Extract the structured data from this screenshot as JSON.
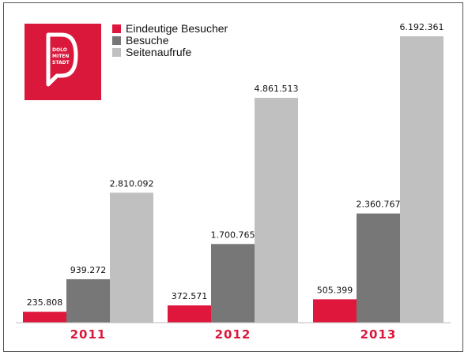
{
  "logo": {
    "lines": [
      "DOLO",
      "MITEN",
      "STADT"
    ],
    "color": "#d9183b"
  },
  "chart_data": {
    "type": "bar",
    "categories": [
      "2011",
      "2012",
      "2013"
    ],
    "series": [
      {
        "name": "Eindeutige Besucher",
        "values": [
          235808,
          372571,
          505399
        ],
        "labels": [
          "235.808",
          "372.571",
          "505.399"
        ],
        "color": "#e0173d"
      },
      {
        "name": "Besuche",
        "values": [
          939272,
          1700765,
          2360767
        ],
        "labels": [
          "939.272",
          "1.700.765",
          "2.360.767"
        ],
        "color": "#777777"
      },
      {
        "name": "Seitenaufrufe",
        "values": [
          2810092,
          4861513,
          6192361
        ],
        "labels": [
          "2.810.092",
          "4.861.513",
          "6.192.361"
        ],
        "color": "#c0c0c0"
      }
    ],
    "legend_position": "top-left",
    "category_label_color": "#d9183b",
    "grid": false,
    "ylim": [
      0,
      6192361
    ]
  }
}
